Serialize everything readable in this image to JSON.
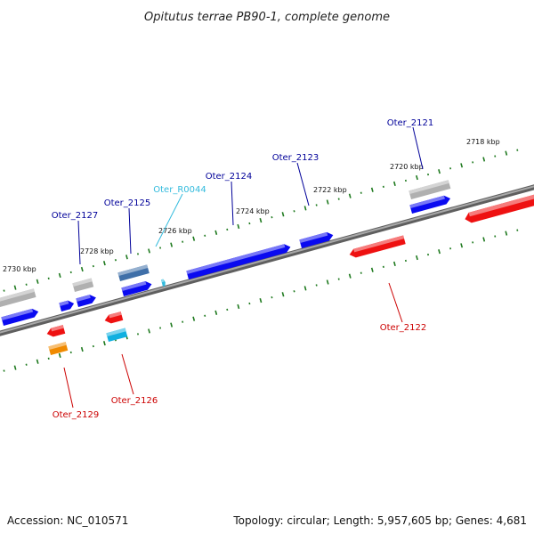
{
  "title": "Opitutus terrae PB90-1, complete genome",
  "footer": {
    "accession": "Accession: NC_010571",
    "summary": "Topology: circular; Length: 5,957,605 bp; Genes: 4,681"
  },
  "colors": {
    "backbone": "#7a7a7a",
    "tick": "#1f7a1f",
    "forward_gene": "#0a0af0",
    "reverse_gene": "#ee1111",
    "pseudogene": "#b0b0b0",
    "steel_gene": "#3f6fa8",
    "orange_gene": "#f08a00",
    "cyan_gene": "#10b0e0",
    "ncrna_label": "#33bbdd",
    "forward_label": "#000099",
    "reverse_label": "#cc0000"
  },
  "scale": {
    "unit": "kbp",
    "ticks": [
      {
        "label": "2718 kbp"
      },
      {
        "label": "2720 kbp"
      },
      {
        "label": "2722 kbp"
      },
      {
        "label": "2724 kbp"
      },
      {
        "label": "2726 kbp"
      },
      {
        "label": "2728 kbp"
      },
      {
        "label": "2730 kbp"
      }
    ]
  },
  "genes": [
    {
      "label": "Oter_2121",
      "strand": "+",
      "type": "gene"
    },
    {
      "label": "Oter_2122",
      "strand": "-",
      "type": "gene"
    },
    {
      "label": "Oter_2123",
      "strand": "+",
      "type": "gene"
    },
    {
      "label": "Oter_2124",
      "strand": "+",
      "type": "gene"
    },
    {
      "label": "Oter_R0044",
      "strand": "+",
      "type": "ncRNA"
    },
    {
      "label": "Oter_2125",
      "strand": "+",
      "type": "gene"
    },
    {
      "label": "Oter_2126",
      "strand": "-",
      "type": "gene"
    },
    {
      "label": "Oter_2127",
      "strand": "+",
      "type": "gene"
    },
    {
      "label": "Oter_2129",
      "strand": "-",
      "type": "gene"
    }
  ]
}
